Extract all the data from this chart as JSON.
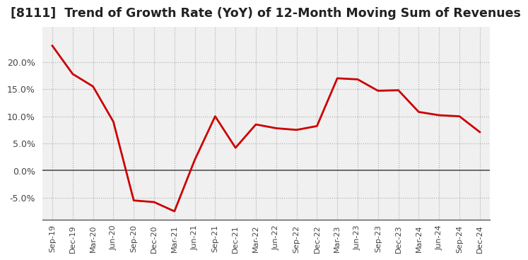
{
  "title": "[8111]  Trend of Growth Rate (YoY) of 12-Month Moving Sum of Revenues",
  "x_labels": [
    "Sep-19",
    "Dec-19",
    "Mar-20",
    "Jun-20",
    "Sep-20",
    "Dec-20",
    "Mar-21",
    "Jun-21",
    "Sep-21",
    "Dec-21",
    "Mar-22",
    "Jun-22",
    "Sep-22",
    "Dec-22",
    "Mar-23",
    "Jun-23",
    "Sep-23",
    "Dec-23",
    "Mar-24",
    "Jun-24",
    "Sep-24",
    "Dec-24"
  ],
  "y_values": [
    0.23,
    0.178,
    0.155,
    0.09,
    -0.055,
    -0.058,
    -0.075,
    0.02,
    0.1,
    0.042,
    0.085,
    0.078,
    0.075,
    0.082,
    0.17,
    0.168,
    0.147,
    0.148,
    0.108,
    0.102,
    0.1,
    0.071
  ],
  "line_color": "#cc0000",
  "line_width": 2.0,
  "ylim": [
    -0.09,
    0.265
  ],
  "yticks": [
    -0.05,
    0.0,
    0.05,
    0.1,
    0.15,
    0.2
  ],
  "background_color": "#ffffff",
  "plot_bg_color": "#f0f0f0",
  "grid_color": "#aaaaaa",
  "title_fontsize": 12.5,
  "zero_line_color": "#555555",
  "tick_label_color": "#444444"
}
